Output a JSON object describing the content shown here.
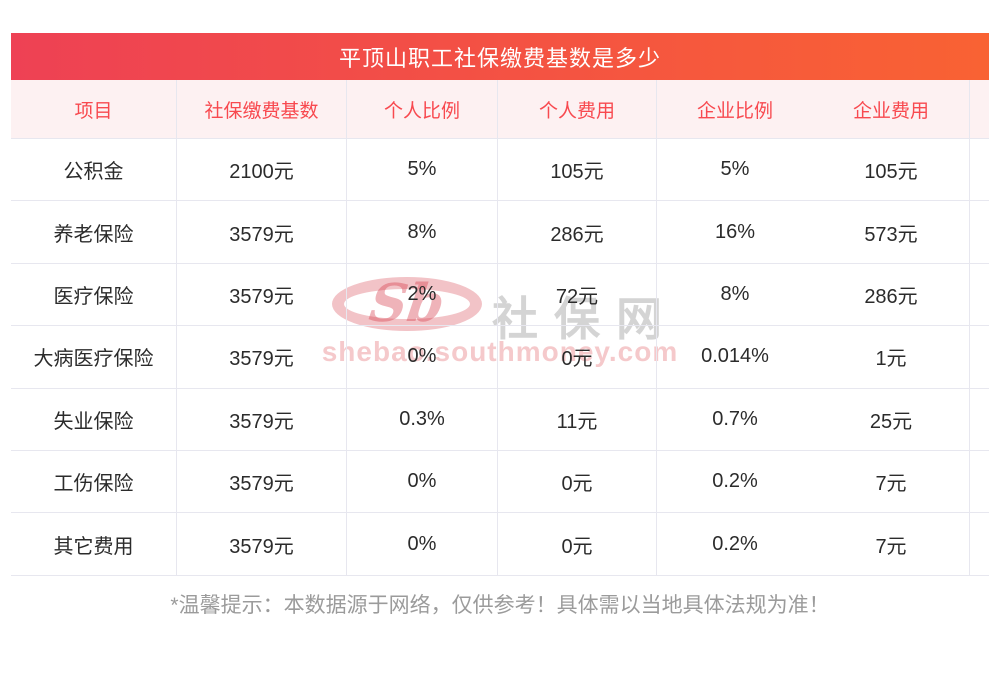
{
  "page": {
    "title": "平顶山职工社保缴费基数是多少",
    "footer_note": "*温馨提示：本数据源于网络，仅供参考！具体需以当地具体法规为准！"
  },
  "watermark": {
    "logo_text": "Sb",
    "site_name": "社保网",
    "site_url": "shebao.southmoney.com"
  },
  "colors": {
    "banner_gradient_start": "#ee4154",
    "banner_gradient_end": "#f96233",
    "header_bg": "#fdf1f2",
    "header_text": "#f8494f",
    "body_text": "#2b2b2b",
    "grid_line": "#e7e7ef",
    "footer_text": "#9b9b9b"
  },
  "chart_data": {
    "type": "table",
    "title": "平顶山职工社保缴费基数是多少",
    "columns": [
      "项目",
      "社保缴费基数",
      "个人比例",
      "个人费用",
      "企业比例",
      "企业费用"
    ],
    "rows": [
      [
        "公积金",
        "2100元",
        "5%",
        "105元",
        "5%",
        "105元"
      ],
      [
        "养老保险",
        "3579元",
        "8%",
        "286元",
        "16%",
        "573元"
      ],
      [
        "医疗保险",
        "3579元",
        "2%",
        "72元",
        "8%",
        "286元"
      ],
      [
        "大病医疗保险",
        "3579元",
        "0%",
        "0元",
        "0.014%",
        "1元"
      ],
      [
        "失业保险",
        "3579元",
        "0.3%",
        "11元",
        "0.7%",
        "25元"
      ],
      [
        "工伤保险",
        "3579元",
        "0%",
        "0元",
        "0.2%",
        "7元"
      ],
      [
        "其它费用",
        "3579元",
        "0%",
        "0元",
        "0.2%",
        "7元"
      ]
    ]
  }
}
